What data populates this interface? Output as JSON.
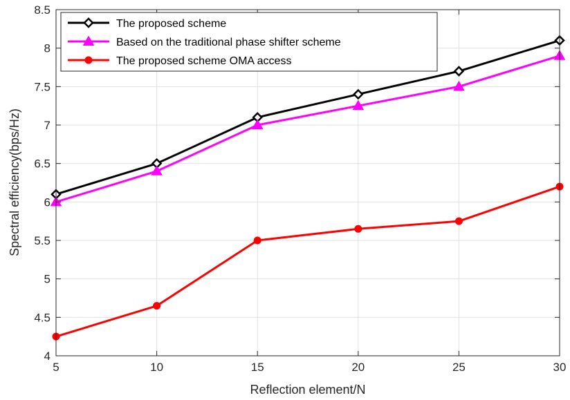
{
  "chart_data": {
    "type": "line",
    "xlabel": "Reflection element/N",
    "ylabel": "Spectral efficiency(bps/Hz)",
    "xlim": [
      5,
      30
    ],
    "ylim": [
      4,
      8.5
    ],
    "xticks": [
      5,
      10,
      15,
      20,
      25,
      30
    ],
    "yticks": [
      4,
      4.5,
      5,
      5.5,
      6,
      6.5,
      7,
      7.5,
      8,
      8.5
    ],
    "x": [
      5,
      10,
      15,
      20,
      25,
      30
    ],
    "grid": true,
    "legend_position": "top-left",
    "series": [
      {
        "name": "The proposed scheme",
        "values": [
          6.1,
          6.5,
          7.1,
          7.4,
          7.7,
          8.1
        ],
        "color": "#000000",
        "marker": "diamond-icon"
      },
      {
        "name": "Based on the traditional phase shifter scheme",
        "values": [
          6.0,
          6.4,
          7.0,
          7.25,
          7.5,
          7.9
        ],
        "color": "#ff00ff",
        "marker": "triangle-icon"
      },
      {
        "name": "The proposed scheme OMA access",
        "values": [
          4.25,
          4.65,
          5.5,
          5.65,
          5.75,
          6.2
        ],
        "color": "#ff0000",
        "marker": "circle-icon"
      }
    ]
  }
}
